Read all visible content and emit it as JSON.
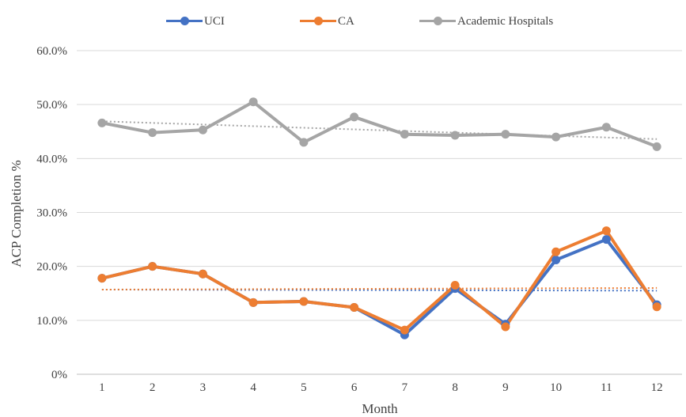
{
  "chart_data": {
    "type": "line",
    "xlabel": "Month",
    "ylabel": "ACP Completion %",
    "ylim": [
      0,
      60
    ],
    "yticks": [
      "0%",
      "10.0%",
      "20.0%",
      "30.0%",
      "40.0%",
      "50.0%",
      "60.0%"
    ],
    "categories": [
      "1",
      "2",
      "3",
      "4",
      "5",
      "6",
      "7",
      "8",
      "9",
      "10",
      "11",
      "12"
    ],
    "grid": "horizontal",
    "legend_position": "top",
    "series": [
      {
        "name": "UCI",
        "color": "#4472C4",
        "values": [
          17.8,
          20.0,
          18.6,
          13.3,
          13.5,
          12.4,
          7.3,
          15.9,
          9.3,
          21.2,
          25.0,
          12.9
        ],
        "trendline": [
          15.7,
          15.5
        ]
      },
      {
        "name": "CA",
        "color": "#ED7D31",
        "values": [
          17.8,
          20.0,
          18.6,
          13.3,
          13.5,
          12.4,
          8.2,
          16.5,
          8.8,
          22.7,
          26.6,
          12.5
        ],
        "trendline": [
          15.7,
          16.0
        ]
      },
      {
        "name": "Academic Hospitals",
        "color": "#A5A5A5",
        "values": [
          46.6,
          44.8,
          45.3,
          50.5,
          43.0,
          47.7,
          44.5,
          44.3,
          44.5,
          44.0,
          45.8,
          42.2
        ],
        "trendline": [
          46.9,
          43.6
        ]
      }
    ]
  }
}
